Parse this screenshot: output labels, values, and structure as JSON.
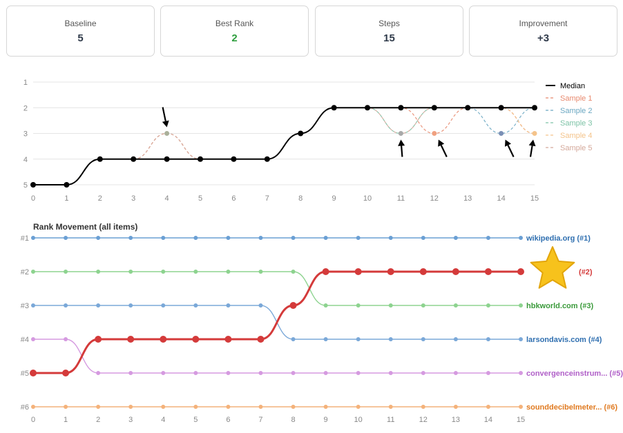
{
  "stats": [
    {
      "label": "Baseline",
      "value": "5",
      "color": "#2f3a4a"
    },
    {
      "label": "Best Rank",
      "value": "2",
      "color": "#2e9e3e"
    },
    {
      "label": "Steps",
      "value": "15",
      "color": "#2f3a4a"
    },
    {
      "label": "Improvement",
      "value": "+3",
      "color": "#2f3a4a"
    }
  ],
  "chart_data": [
    {
      "type": "line",
      "title": "",
      "x": [
        0,
        1,
        2,
        3,
        4,
        5,
        6,
        7,
        8,
        9,
        10,
        11,
        12,
        13,
        14,
        15
      ],
      "ylim": [
        1,
        5
      ],
      "y_inverted": true,
      "yticks": [
        1,
        2,
        3,
        4,
        5
      ],
      "grid": true,
      "legend_position": "right",
      "series": [
        {
          "name": "Median",
          "color": "#000000",
          "values": [
            5,
            5,
            4,
            4,
            4,
            4,
            4,
            4,
            3,
            2,
            2,
            2,
            2,
            2,
            2,
            2
          ]
        },
        {
          "name": "Sample 1",
          "color": "#e8896e",
          "values": [
            5,
            5,
            4,
            4,
            3,
            4,
            4,
            4,
            3,
            2,
            2,
            2,
            3,
            2,
            2,
            3
          ]
        },
        {
          "name": "Sample 2",
          "color": "#6aa7c2",
          "values": [
            5,
            5,
            4,
            4,
            4,
            4,
            4,
            4,
            3,
            2,
            2,
            2,
            2,
            2,
            3,
            2
          ]
        },
        {
          "name": "Sample 3",
          "color": "#7dc3a6",
          "values": [
            5,
            5,
            4,
            4,
            4,
            4,
            4,
            4,
            3,
            2,
            2,
            3,
            2,
            2,
            2,
            2
          ]
        },
        {
          "name": "Sample 4",
          "color": "#f4c38a",
          "values": [
            5,
            5,
            4,
            4,
            4,
            4,
            4,
            4,
            3,
            2,
            2,
            2,
            2,
            2,
            2,
            3
          ]
        },
        {
          "name": "Sample 5",
          "color": "#d4a89a",
          "values": [
            5,
            5,
            4,
            4,
            3,
            4,
            4,
            4,
            3,
            2,
            2,
            3,
            2,
            2,
            2,
            2
          ]
        }
      ],
      "highlight_points": [
        {
          "x": 4,
          "y": 3,
          "color": "#aab09a"
        },
        {
          "x": 11,
          "y": 3,
          "color": "#a9a9a9"
        },
        {
          "x": 12,
          "y": 3,
          "color": "#f0a080"
        },
        {
          "x": 14,
          "y": 3,
          "color": "#7a8fb5"
        },
        {
          "x": 15,
          "y": 3,
          "color": "#f4c38a"
        }
      ],
      "annotations": [
        {
          "type": "arrow",
          "at_x": 4,
          "at_y": 3,
          "from": "above"
        },
        {
          "type": "arrow",
          "at_x": 11,
          "at_y": 3,
          "from": "below"
        },
        {
          "type": "arrow",
          "at_x": 12,
          "at_y": 3,
          "from": "below-right"
        },
        {
          "type": "arrow",
          "at_x": 14,
          "at_y": 3,
          "from": "below-right"
        },
        {
          "type": "arrow",
          "at_x": 15,
          "at_y": 3,
          "from": "below-left"
        }
      ]
    },
    {
      "type": "line",
      "title": "Rank Movement (all items)",
      "x": [
        0,
        1,
        2,
        3,
        4,
        5,
        6,
        7,
        8,
        9,
        10,
        11,
        12,
        13,
        14,
        15
      ],
      "ylim": [
        1,
        6
      ],
      "y_inverted": true,
      "ytick_labels": [
        "#1",
        "#2",
        "#3",
        "#4",
        "#5",
        "#6"
      ],
      "series": [
        {
          "label": "wikipedia.org (#1)",
          "color": "#6a9fd4",
          "label_color": "#2f6fb0",
          "values": [
            1,
            1,
            1,
            1,
            1,
            1,
            1,
            1,
            1,
            1,
            1,
            1,
            1,
            1,
            1,
            1
          ]
        },
        {
          "label": "hbkworld.com (#3)",
          "color": "#8dd38f",
          "label_color": "#3a9a3a",
          "values": [
            2,
            2,
            2,
            2,
            2,
            2,
            2,
            2,
            2,
            3,
            3,
            3,
            3,
            3,
            3,
            3
          ]
        },
        {
          "label": "larsondavis.com (#4)",
          "color": "#7aa8d8",
          "label_color": "#2f6fb0",
          "values": [
            3,
            3,
            3,
            3,
            3,
            3,
            3,
            3,
            4,
            4,
            4,
            4,
            4,
            4,
            4,
            4
          ]
        },
        {
          "label": "convergenceinstrum... (#5)",
          "color": "#d59ae0",
          "label_color": "#b060c8",
          "values": [
            4,
            4,
            5,
            5,
            5,
            5,
            5,
            5,
            5,
            5,
            5,
            5,
            5,
            5,
            5,
            5
          ]
        },
        {
          "label": "sounddecibelmeter... (#6)",
          "color": "#f4b27a",
          "label_color": "#e07a20",
          "values": [
            6,
            6,
            6,
            6,
            6,
            6,
            6,
            6,
            6,
            6,
            6,
            6,
            6,
            6,
            6,
            6
          ]
        },
        {
          "label": "(#2)",
          "color": "#d43a3a",
          "label_color": "#d43a3a",
          "highlight": true,
          "marker": "star",
          "values": [
            5,
            5,
            4,
            4,
            4,
            4,
            4,
            4,
            3,
            2,
            2,
            2,
            2,
            2,
            2,
            2
          ]
        }
      ]
    }
  ]
}
